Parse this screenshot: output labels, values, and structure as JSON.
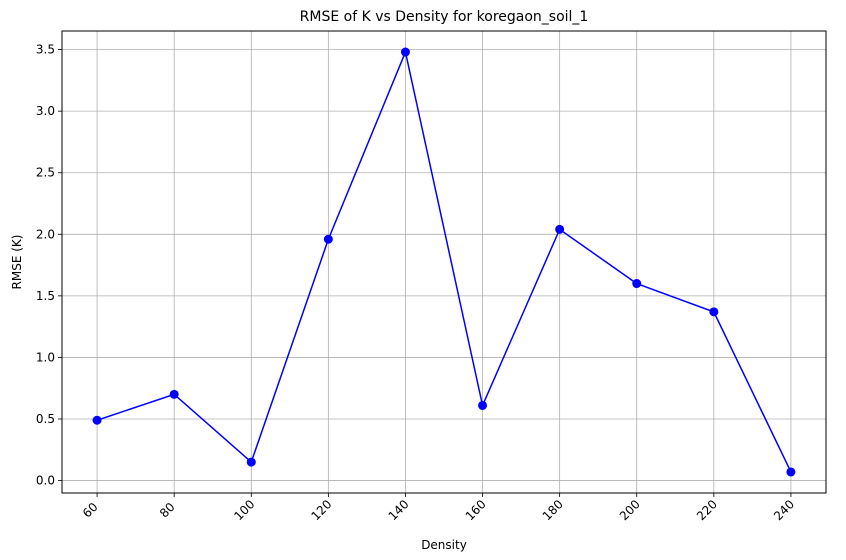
{
  "chart_data": {
    "type": "line",
    "title": "RMSE of K vs Density for koregaon_soil_1",
    "xlabel": "Density",
    "ylabel": "RMSE (K)",
    "x": [
      60,
      80,
      100,
      120,
      140,
      160,
      180,
      200,
      220,
      240
    ],
    "series": [
      {
        "values": [
          0.49,
          0.7,
          0.15,
          1.96,
          3.48,
          0.61,
          2.04,
          1.6,
          1.37,
          0.07
        ],
        "color": "#0000ff",
        "marker": "circle"
      }
    ],
    "xticks": [
      "60",
      "80",
      "100",
      "120",
      "140",
      "160",
      "180",
      "200",
      "220",
      "240"
    ],
    "yticks": [
      "0.0",
      "0.5",
      "1.0",
      "1.5",
      "2.0",
      "2.5",
      "3.0",
      "3.5"
    ],
    "xtick_rotation": 45,
    "xlim": [
      50.9,
      249.1
    ],
    "ylim": [
      -0.101,
      3.651
    ],
    "grid": true
  }
}
